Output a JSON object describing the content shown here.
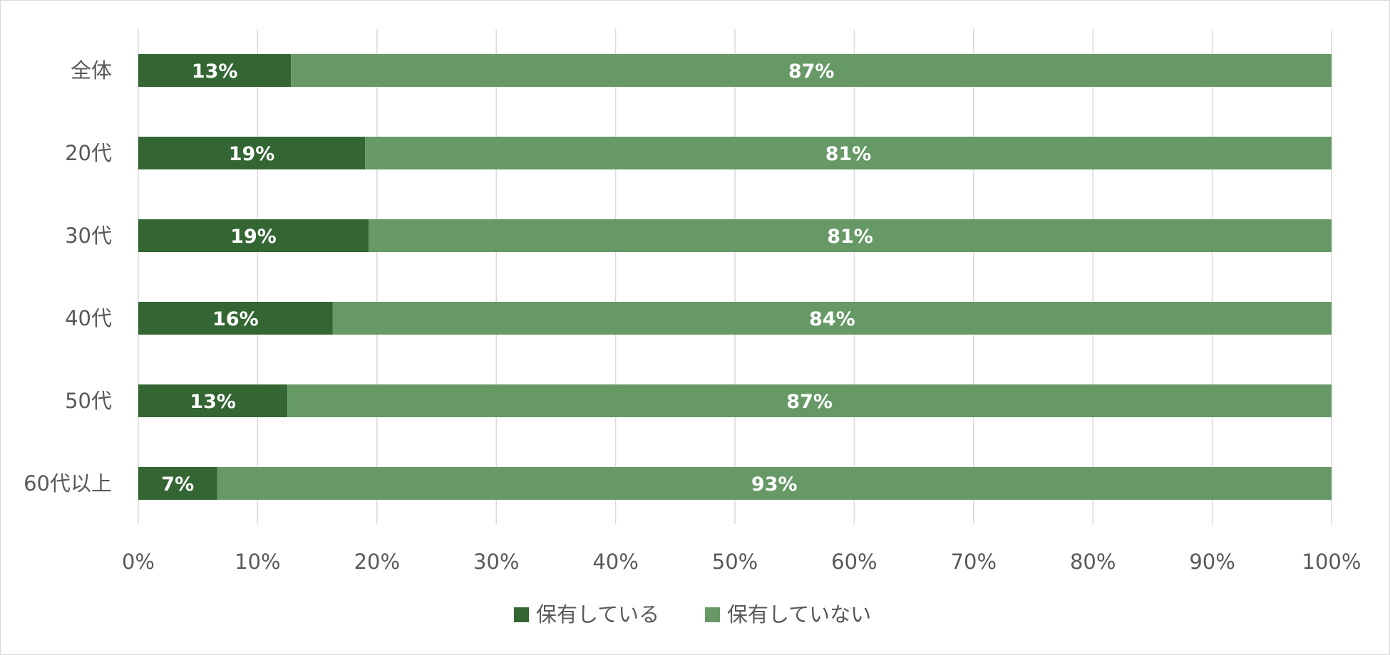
{
  "chart_data": {
    "type": "bar",
    "orientation": "horizontal",
    "stacked": "percent",
    "categories": [
      "全体",
      "20代",
      "30代",
      "40代",
      "50代",
      "60代以上"
    ],
    "series": [
      {
        "name": "保有している",
        "values": [
          12.8,
          19.0,
          19.3,
          16.3,
          12.5,
          6.6
        ],
        "labels": [
          "13%",
          "19%",
          "19%",
          "16%",
          "13%",
          "7%"
        ],
        "color": "#336633"
      },
      {
        "name": "保有していない",
        "values": [
          87.2,
          81.0,
          80.7,
          83.7,
          87.5,
          93.4
        ],
        "labels": [
          "87%",
          "81%",
          "81%",
          "84%",
          "87%",
          "93%"
        ],
        "color": "#669966"
      }
    ],
    "xlim": [
      0,
      100
    ],
    "xticks": [
      0,
      10,
      20,
      30,
      40,
      50,
      60,
      70,
      80,
      90,
      100
    ],
    "xtick_labels": [
      "0%",
      "10%",
      "20%",
      "30%",
      "40%",
      "50%",
      "60%",
      "70%",
      "80%",
      "90%",
      "100%"
    ],
    "grid": true,
    "gridline_color": "#d9d9d9",
    "legend_position": "bottom",
    "title": "",
    "xlabel": "",
    "ylabel": ""
  }
}
